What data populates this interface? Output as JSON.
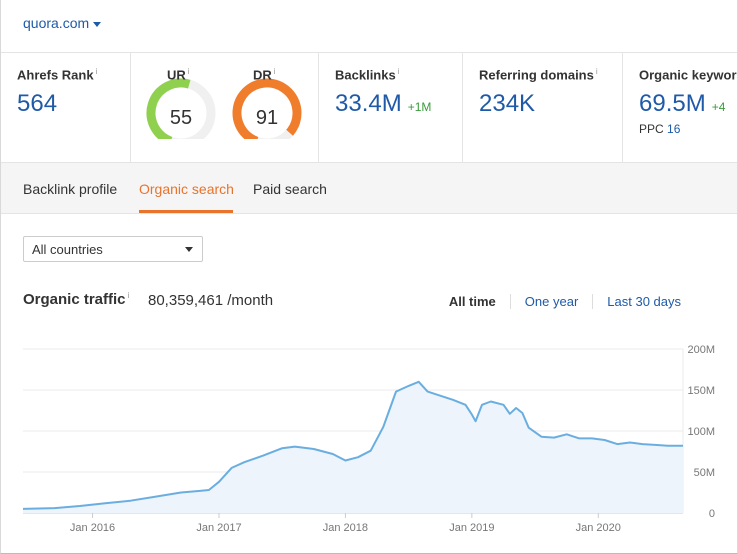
{
  "site": {
    "domain": "quora.com"
  },
  "metrics": {
    "ahrefs_rank": {
      "label": "Ahrefs Rank",
      "info": "i",
      "value": "564"
    },
    "ur": {
      "label": "UR",
      "info": "i",
      "value": "55",
      "level": 55,
      "color": "#8fd14f"
    },
    "dr": {
      "label": "DR",
      "info": "i",
      "value": "91",
      "level": 91,
      "color": "#f07d2c"
    },
    "backlinks": {
      "label": "Backlinks",
      "info": "i",
      "value": "33.4M",
      "delta": "+1M"
    },
    "referring_domains": {
      "label": "Referring domains",
      "info": "i",
      "value": "234K"
    },
    "organic_keywords": {
      "label": "Organic keywords",
      "info": "i",
      "value": "69.5M",
      "delta": "+4",
      "ppc_label": "PPC",
      "ppc_value": "16"
    }
  },
  "tabs": [
    {
      "label": "Backlink profile",
      "active": false
    },
    {
      "label": "Organic search",
      "active": true
    },
    {
      "label": "Paid search",
      "active": false
    }
  ],
  "filter": {
    "country": "All countries"
  },
  "traffic": {
    "title": "Organic traffic",
    "info": "i",
    "value": "80,359,461 /month"
  },
  "ranges": [
    {
      "label": "All time",
      "active": true
    },
    {
      "label": "One year",
      "active": false
    },
    {
      "label": "Last 30 days",
      "active": false
    }
  ],
  "colors": {
    "accent": "#e8742b",
    "link": "#1f5aa8",
    "line": "#6aaee0",
    "fill": "#eef4fb",
    "positive": "#3c9a3c"
  },
  "chart_data": {
    "type": "area",
    "title": "",
    "xlabel": "",
    "ylabel": "",
    "ylim": [
      0,
      200
    ],
    "y_ticks": [
      0,
      50,
      100,
      150,
      200
    ],
    "y_tick_labels": [
      "0",
      "50M",
      "100M",
      "150M",
      "200M"
    ],
    "x_ticks": [
      2016.0,
      2017.0,
      2018.0,
      2019.0,
      2020.0
    ],
    "x_tick_labels": [
      "Jan 2016",
      "Jan 2017",
      "Jan 2018",
      "Jan 2019",
      "Jan 2020"
    ],
    "xlim": [
      2015.45,
      2020.67
    ],
    "grid": true,
    "series": [
      {
        "x": [
          2015.45,
          2015.7,
          2015.9,
          2016.1,
          2016.3,
          2016.5,
          2016.7,
          2016.85,
          2016.92,
          2017.0,
          2017.1,
          2017.2,
          2017.35,
          2017.5,
          2017.6,
          2017.75,
          2017.9,
          2018.0,
          2018.1,
          2018.2,
          2018.3,
          2018.4,
          2018.5,
          2018.58,
          2018.65,
          2018.75,
          2018.85,
          2018.95,
          2019.0,
          2019.03,
          2019.08,
          2019.15,
          2019.25,
          2019.3,
          2019.35,
          2019.4,
          2019.45,
          2019.55,
          2019.65,
          2019.75,
          2019.85,
          2019.95,
          2020.05,
          2020.15,
          2020.25,
          2020.35,
          2020.45,
          2020.55,
          2020.67
        ],
        "y": [
          5,
          6,
          8.5,
          12,
          15,
          20,
          25,
          27,
          28,
          38,
          55,
          62,
          70,
          79,
          81,
          78,
          72,
          64,
          68,
          76,
          105,
          148,
          155,
          160,
          148,
          143,
          138,
          132,
          120,
          112,
          132,
          136,
          132,
          121,
          128,
          122,
          104,
          93,
          92,
          96,
          91,
          91,
          89,
          84,
          86,
          84,
          83,
          82,
          82
        ]
      }
    ]
  }
}
